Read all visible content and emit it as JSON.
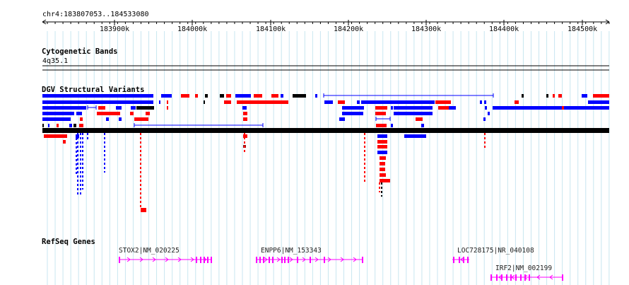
{
  "region": {
    "label": "chr4:183807053..184533080",
    "start": 183807053,
    "end": 184533080
  },
  "ruler": {
    "tick_labels": [
      "183900k",
      "184000k",
      "184100k",
      "184200k",
      "184300k",
      "184400k",
      "184500k"
    ]
  },
  "tracks": {
    "cytoband": {
      "title": "Cytogenetic Bands",
      "band": "4q35.1"
    },
    "dgv": {
      "title": "DGV Structural Variants"
    },
    "refseq": {
      "title": "RefSeq Genes"
    }
  },
  "genes": [
    {
      "label": "STOX2|NM_020225"
    },
    {
      "label": "ENPP6|NM_153343"
    },
    {
      "label": "LOC728175|NR_040108"
    },
    {
      "label": "IRF2|NM_002199"
    }
  ],
  "colors": {
    "gain": "#ff0000",
    "loss": "#0000ff",
    "complex": "#000000",
    "gene": "#ff00ff",
    "grid": "#c8e6f0",
    "dark_red": "#8b1a1a"
  }
}
